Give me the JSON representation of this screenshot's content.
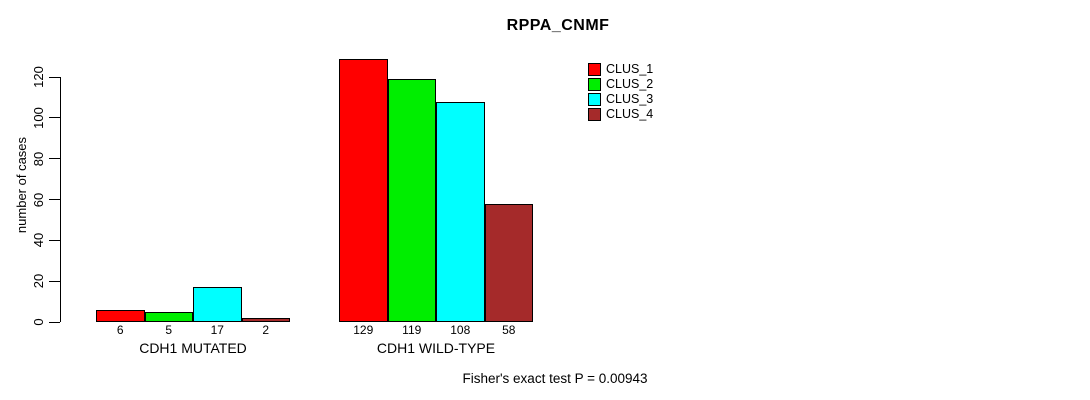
{
  "chart_data": {
    "type": "bar",
    "title": "RPPA_CNMF",
    "xlabel": "",
    "ylabel": "number of cases",
    "categories": [
      "CDH1 MUTATED",
      "CDH1 WILD-TYPE"
    ],
    "series": [
      {
        "name": "CLUS_1",
        "color": "#FF0000",
        "values": [
          6,
          129
        ]
      },
      {
        "name": "CLUS_2",
        "color": "#00EE00",
        "values": [
          5,
          119
        ]
      },
      {
        "name": "CLUS_3",
        "color": "#00FFFF",
        "values": [
          17,
          108
        ]
      },
      {
        "name": "CLUS_4",
        "color": "#A52A2A",
        "values": [
          2,
          58
        ]
      }
    ],
    "yticks": [
      0,
      20,
      40,
      60,
      80,
      100,
      120
    ],
    "ylim": [
      0,
      130
    ],
    "grid": false,
    "bar_value_labels": true,
    "legend_position": "top-right",
    "legend_entries": [
      "CLUS_1",
      "CLUS_2",
      "CLUS_3",
      "CLUS_4"
    ],
    "annotation": "Fisher's exact test P = 0.00943"
  }
}
